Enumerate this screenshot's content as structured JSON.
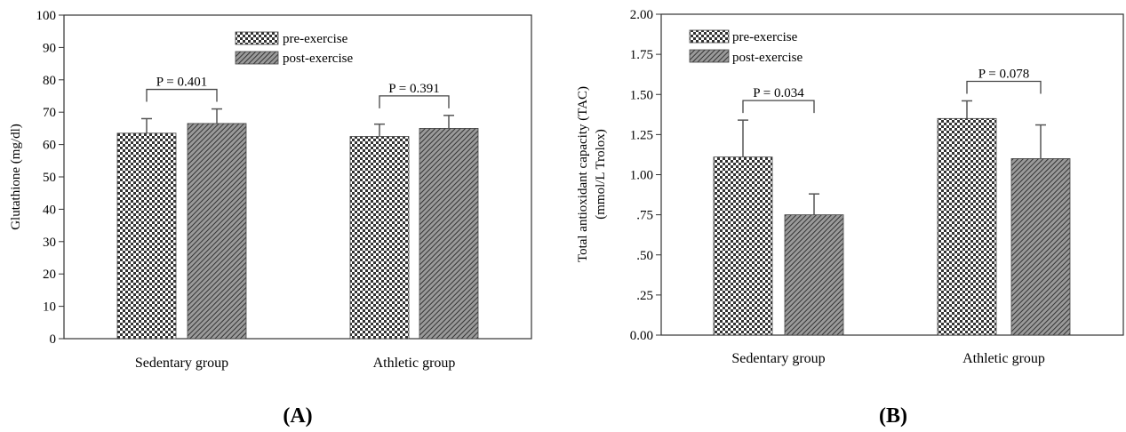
{
  "chart_data": [
    {
      "type": "bar",
      "panel_label": "(A)",
      "ylabel": "Glutathione (mg/dl)",
      "xlabel": "",
      "categories": [
        "Sedentary group",
        "Athletic group"
      ],
      "ylim": [
        0,
        100
      ],
      "yticks": [
        0,
        10,
        20,
        30,
        40,
        50,
        60,
        70,
        80,
        90,
        100
      ],
      "ytick_labels": [
        "0",
        "10",
        "20",
        "30",
        "40",
        "50",
        "60",
        "70",
        "80",
        "90",
        "100"
      ],
      "series": [
        {
          "name": "pre-exercise",
          "values": [
            63.5,
            62.5
          ],
          "errors": [
            4.5,
            3.8
          ],
          "pattern": "checker"
        },
        {
          "name": "post-exercise",
          "values": [
            66.5,
            65.0
          ],
          "errors": [
            4.5,
            4.0
          ],
          "pattern": "hatch"
        }
      ],
      "annotations": [
        "P = 0.401",
        "P = 0.391"
      ],
      "legend_position": "top-center",
      "grid": false
    },
    {
      "type": "bar",
      "panel_label": "(B)",
      "ylabel": [
        "Total antioxidant capacity (TAC)",
        "(mmol/L Trolox)"
      ],
      "xlabel": "",
      "categories": [
        "Sedentary group",
        "Athletic group"
      ],
      "ylim": [
        0,
        2
      ],
      "yticks": [
        0,
        0.25,
        0.5,
        0.75,
        1.0,
        1.25,
        1.5,
        1.75,
        2.0
      ],
      "ytick_labels": [
        "0.00",
        ".25",
        ".50",
        ".75",
        "1.00",
        "1.25",
        "1.50",
        "1.75",
        "2.00"
      ],
      "series": [
        {
          "name": "pre-exercise",
          "values": [
            1.11,
            1.35
          ],
          "errors": [
            0.23,
            0.11
          ],
          "pattern": "checker"
        },
        {
          "name": "post-exercise",
          "values": [
            0.75,
            1.1
          ],
          "errors": [
            0.13,
            0.21
          ],
          "pattern": "hatch"
        }
      ],
      "annotations": [
        "P = 0.034",
        "P = 0.078"
      ],
      "legend_position": "top-left",
      "grid": false
    }
  ]
}
